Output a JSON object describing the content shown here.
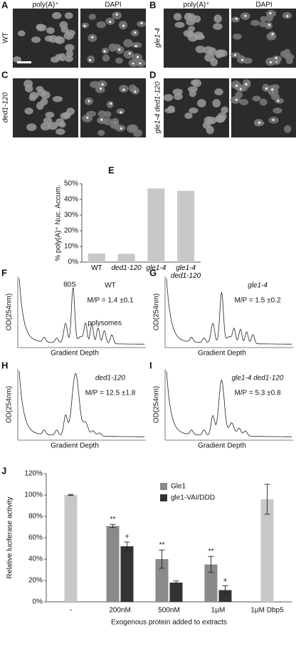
{
  "panels": {
    "A": {
      "letter": "A",
      "columns": [
        "poly(A)⁺",
        "DAPI"
      ],
      "label": "WT"
    },
    "B": {
      "letter": "B",
      "columns": [
        "poly(A)⁺",
        "DAPI"
      ],
      "label": "gle1-4"
    },
    "C": {
      "letter": "C",
      "label": "ded1-120"
    },
    "D": {
      "letter": "D",
      "label": "gle1-4 ded1-120"
    },
    "F": {
      "letter": "F",
      "strain": "WT",
      "ratio": "M/P = 1.4 ±0.1",
      "peak": "80S",
      "polysomes": "polysomes",
      "ylabel": "OD(254nm)",
      "xlabel": "Gradient Depth"
    },
    "G": {
      "letter": "G",
      "strain": "gle1-4",
      "ratio": "M/P = 1.5 ±0.2",
      "ylabel": "OD(254nm)",
      "xlabel": "Gradient Depth"
    },
    "H": {
      "letter": "H",
      "strain": "ded1-120",
      "ratio": "M/P = 12.5 ±1.8",
      "ylabel": "OD(254nm)",
      "xlabel": "Gradient Depth"
    },
    "I": {
      "letter": "I",
      "strain": "gle1-4 ded1-120",
      "ratio": "M/P = 5.3 ±0.8",
      "ylabel": "OD(254nm)",
      "xlabel": "Gradient Depth"
    }
  },
  "chart_data": [
    {
      "type": "bar",
      "letter": "E",
      "ylabel": "% poly(A)⁺ Nuc. Accum.",
      "categories": [
        "WT",
        "ded1-120",
        "gle1-4",
        "gle1-4 ded1-120"
      ],
      "values": [
        5.5,
        5.3,
        47,
        45.5
      ],
      "color": "#c8c8c8",
      "ylim": [
        0,
        50
      ],
      "yticks": [
        {
          "value": 0,
          "label": "0%"
        },
        {
          "value": 10,
          "label": "10%"
        },
        {
          "value": 20,
          "label": "20%"
        },
        {
          "value": 30,
          "label": "30%"
        },
        {
          "value": 40,
          "label": "40%"
        },
        {
          "value": 50,
          "label": "50%"
        }
      ]
    },
    {
      "type": "grouped_bar",
      "letter": "J",
      "ylabel": "Relative luciferase activity",
      "xlabel": "Exogenous protein added to extracts",
      "categories": [
        "-",
        "200nM",
        "500nM",
        "1µM",
        "1µM Dbp5"
      ],
      "series": [
        {
          "color": "#c8c8c8",
          "values": [
            100,
            null,
            null,
            null,
            96
          ],
          "errors": [
            0.5,
            null,
            null,
            null,
            14
          ]
        },
        {
          "name": "Gle1",
          "color": "#8a8a8a",
          "values": [
            null,
            71,
            40,
            35,
            null
          ],
          "errors": [
            null,
            1.5,
            8.5,
            7.5,
            null
          ],
          "annotations": [
            null,
            "**",
            "**",
            "**",
            null
          ]
        },
        {
          "name": "gle1-VAI/DDD",
          "color": "#333333",
          "values": [
            null,
            52,
            18,
            11,
            null
          ],
          "errors": [
            null,
            4,
            1.5,
            4,
            null
          ],
          "annotations": [
            null,
            "+",
            null,
            "+",
            null
          ]
        }
      ],
      "ylim": [
        0,
        120
      ],
      "yticks": [
        {
          "value": 0,
          "label": "0%"
        },
        {
          "value": 20,
          "label": "20%"
        },
        {
          "value": 40,
          "label": "40%"
        },
        {
          "value": 60,
          "label": "60%"
        },
        {
          "value": 80,
          "label": "80%"
        },
        {
          "value": 100,
          "label": "100%"
        },
        {
          "value": 120,
          "label": "120%"
        }
      ]
    }
  ]
}
